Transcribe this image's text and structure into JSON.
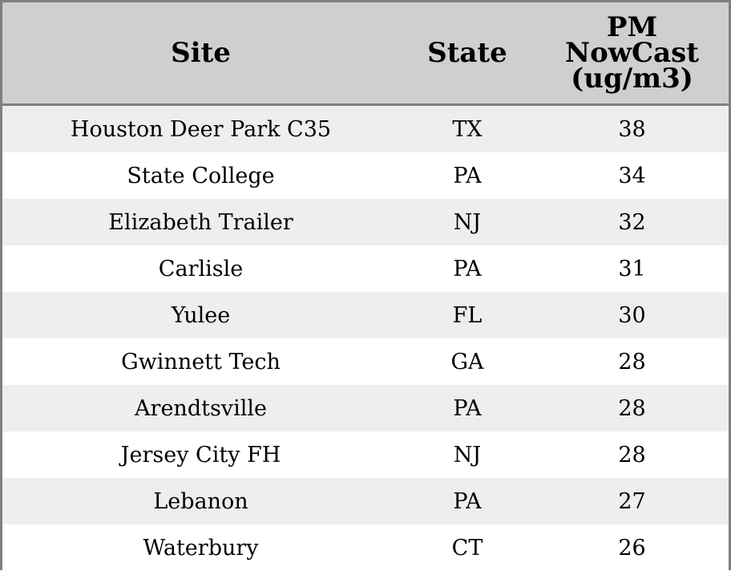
{
  "chart_data": {
    "type": "table",
    "columns": [
      "Site",
      "State",
      "PM NowCast (ug/m3)"
    ],
    "header_lines": [
      "PM",
      "NowCast",
      "(ug/m3)"
    ],
    "rows": [
      {
        "site": "Houston Deer Park C35",
        "state": "TX",
        "value": "38"
      },
      {
        "site": "State College",
        "state": "PA",
        "value": "34"
      },
      {
        "site": "Elizabeth Trailer",
        "state": "NJ",
        "value": "32"
      },
      {
        "site": "Carlisle",
        "state": "PA",
        "value": "31"
      },
      {
        "site": "Yulee",
        "state": "FL",
        "value": "30"
      },
      {
        "site": "Gwinnett Tech",
        "state": "GA",
        "value": "28"
      },
      {
        "site": "Arendtsville",
        "state": "PA",
        "value": "28"
      },
      {
        "site": "Jersey City FH",
        "state": "NJ",
        "value": "28"
      },
      {
        "site": "Lebanon",
        "state": "PA",
        "value": "27"
      },
      {
        "site": "Waterbury",
        "state": "CT",
        "value": "26"
      }
    ]
  },
  "colors": {
    "header_bg": "#cfcfcf",
    "row_alt_bg": "#eeeeee",
    "row_bg": "#ffffff",
    "border": "#808080"
  }
}
